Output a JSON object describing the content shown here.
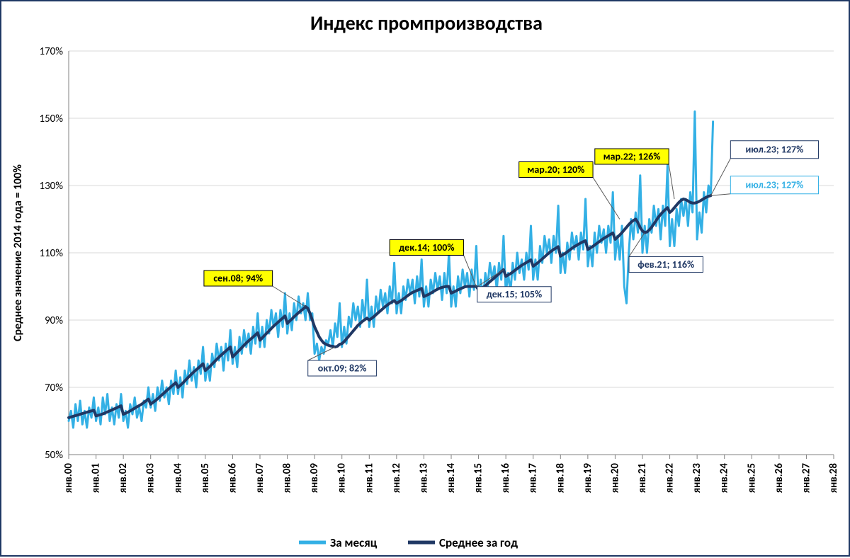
{
  "chart": {
    "type": "line",
    "title": "Индекс промпроизводства",
    "title_fontsize": 28,
    "y_axis_title": "Среднее значение 2014 года = 100%",
    "ylim": [
      50,
      170
    ],
    "ytick_step": 20,
    "y_tick_labels": [
      "50%",
      "70%",
      "90%",
      "110%",
      "130%",
      "150%",
      "170%"
    ],
    "x_categories": [
      "янв.00",
      "янв.01",
      "янв.02",
      "янв.03",
      "янв.04",
      "янв.05",
      "янв.06",
      "янв.07",
      "янв.08",
      "янв.09",
      "янв.10",
      "янв.11",
      "янв.12",
      "янв.13",
      "янв.14",
      "янв.15",
      "янв.16",
      "янв.17",
      "янв.18",
      "янв.19",
      "янв.20",
      "янв.21",
      "янв.22",
      "янв.23",
      "янв.24",
      "янв.25",
      "янв.26",
      "янв.27",
      "янв.28"
    ],
    "background_color": "#ffffff",
    "grid_color": "#d9d9d9",
    "border_color": "#1f3864",
    "series": [
      {
        "name": "За месяц",
        "color": "#33b0e5",
        "line_width": 3,
        "data": [
          60,
          63,
          58,
          65,
          60,
          66,
          59,
          63,
          58,
          64,
          61,
          67,
          60,
          64,
          59,
          67,
          62,
          68,
          60,
          64,
          59,
          65,
          61,
          68,
          60,
          63,
          58,
          65,
          62,
          67,
          61,
          64,
          60,
          66,
          64,
          70,
          64,
          68,
          63,
          70,
          66,
          72,
          67,
          70,
          65,
          72,
          68,
          75,
          68,
          73,
          67,
          75,
          71,
          78,
          72,
          76,
          70,
          78,
          74,
          82,
          72,
          77,
          72,
          80,
          76,
          83,
          78,
          82,
          75,
          83,
          78,
          87,
          77,
          82,
          76,
          85,
          80,
          87,
          82,
          86,
          80,
          88,
          83,
          92,
          82,
          88,
          82,
          90,
          86,
          93,
          88,
          92,
          85,
          93,
          88,
          98,
          86,
          92,
          87,
          95,
          90,
          97,
          92,
          95,
          90,
          98,
          90,
          92,
          80,
          83,
          78,
          82,
          80,
          84,
          83,
          87,
          82,
          89,
          85,
          95,
          82,
          88,
          83,
          91,
          88,
          95,
          90,
          94,
          88,
          96,
          90,
          102,
          88,
          94,
          88,
          97,
          92,
          99,
          94,
          98,
          92,
          100,
          95,
          107,
          92,
          98,
          92,
          100,
          96,
          102,
          98,
          102,
          95,
          103,
          97,
          108,
          94,
          100,
          94,
          102,
          98,
          104,
          99,
          103,
          96,
          104,
          98,
          110,
          94,
          100,
          94,
          103,
          98,
          105,
          100,
          104,
          97,
          105,
          99,
          112,
          96,
          102,
          96,
          104,
          100,
          107,
          102,
          106,
          99,
          107,
          102,
          115,
          98,
          104,
          98,
          107,
          102,
          110,
          104,
          108,
          102,
          110,
          105,
          118,
          102,
          108,
          102,
          112,
          107,
          115,
          110,
          114,
          107,
          115,
          110,
          124,
          104,
          110,
          104,
          113,
          108,
          116,
          111,
          115,
          108,
          116,
          111,
          126,
          106,
          112,
          106,
          116,
          110,
          118,
          113,
          117,
          110,
          118,
          113,
          128,
          108,
          115,
          108,
          118,
          100,
          95,
          110,
          120,
          114,
          122,
          116,
          133,
          110,
          118,
          110,
          120,
          116,
          124,
          118,
          123,
          114,
          124,
          118,
          136,
          112,
          120,
          112,
          123,
          118,
          126,
          121,
          126,
          118,
          128,
          122,
          152,
          114,
          122,
          116,
          128,
          122,
          130,
          127,
          149
        ]
      },
      {
        "name": "Среднее за год",
        "color": "#203864",
        "line_width": 4,
        "data": [
          61,
          61.2,
          61.4,
          61.6,
          61.8,
          62,
          62.2,
          62.4,
          62.6,
          62.8,
          63,
          63.2,
          61.5,
          61.7,
          61.9,
          62.1,
          62.4,
          62.7,
          63,
          63.3,
          63.6,
          63.9,
          64.2,
          64.5,
          62,
          62.3,
          62.6,
          63,
          63.4,
          63.8,
          64.2,
          64.6,
          65,
          65.5,
          66,
          66.5,
          65,
          65.5,
          66,
          66.6,
          67.2,
          67.8,
          68.4,
          69,
          69.6,
          70.2,
          70.8,
          71.4,
          70,
          70.6,
          71.2,
          71.9,
          72.6,
          73.3,
          74,
          74.6,
          75.2,
          75.8,
          76.4,
          77,
          75,
          75.6,
          76.2,
          76.9,
          77.6,
          78.3,
          79,
          79.6,
          80.2,
          80.8,
          81.4,
          82,
          79,
          79.7,
          80.4,
          81.1,
          81.8,
          82.5,
          83.2,
          83.8,
          84.4,
          85,
          85.6,
          86.2,
          84,
          84.7,
          85.4,
          86.1,
          86.8,
          87.5,
          88.2,
          88.8,
          89.4,
          90,
          90.6,
          91.2,
          89,
          89.7,
          90.3,
          91,
          91.6,
          92.2,
          92.8,
          93.3,
          94,
          93.5,
          92,
          90,
          88,
          86.5,
          85,
          84,
          83.2,
          82.8,
          82.5,
          82.3,
          82.2,
          82,
          82.2,
          82.8,
          83,
          83.6,
          84.4,
          85.2,
          86,
          86.8,
          87.6,
          88.4,
          89,
          89.6,
          90.1,
          90.6,
          90,
          90.5,
          91,
          91.6,
          92.2,
          92.8,
          93.4,
          94,
          94.5,
          95,
          95.4,
          95.8,
          95,
          95.4,
          95.8,
          96.3,
          96.8,
          97.3,
          97.8,
          98.2,
          98.5,
          98.8,
          99.1,
          99.4,
          97,
          97.3,
          97.6,
          98,
          98.4,
          98.8,
          99.2,
          99.5,
          99.7,
          99.9,
          100,
          100,
          98,
          98.3,
          98.6,
          99,
          99.3,
          99.6,
          99.9,
          100,
          100,
          100,
          100,
          100,
          99,
          99.3,
          99.7,
          100.2,
          100.8,
          101.4,
          102,
          102.6,
          103.2,
          103.8,
          104.4,
          105,
          103,
          103.4,
          103.8,
          104.3,
          104.8,
          105.3,
          105.8,
          106.3,
          106.7,
          107.1,
          107.5,
          107.9,
          106,
          106.5,
          107,
          107.6,
          108.2,
          108.8,
          109.4,
          110,
          110.5,
          111,
          111.4,
          111.8,
          109,
          109.4,
          109.8,
          110.3,
          110.8,
          111.3,
          111.8,
          112.2,
          112.6,
          113,
          113.3,
          113.6,
          111,
          111.4,
          111.8,
          112.3,
          112.8,
          113.3,
          113.8,
          114.3,
          114.7,
          115.1,
          115.5,
          115.9,
          114,
          114.6,
          115.3,
          116,
          116.8,
          117.6,
          118.4,
          119.1,
          119.6,
          120,
          119,
          117.5,
          116.5,
          116,
          116.2,
          116.8,
          117.6,
          118.6,
          119.6,
          120.6,
          121.4,
          122.2,
          122.8,
          123.4,
          122,
          122.6,
          123.4,
          124.2,
          125,
          125.6,
          126,
          125.8,
          125.4,
          125,
          124.8,
          124.8,
          125,
          125.3,
          125.7,
          126.1,
          126.5,
          126.8,
          127
        ]
      }
    ],
    "callouts": [
      {
        "text": "сен.08; 94%",
        "bg": "#ffff00",
        "border": "#000000",
        "text_color": "#000000",
        "data_month_index": 104,
        "data_val": 94,
        "box_dx": -95,
        "box_dy": -40
      },
      {
        "text": "окт.09; 82%",
        "bg": "#ffffff",
        "border": "#203864",
        "text_color": "#203864",
        "data_month_index": 117,
        "data_val": 82,
        "box_dx": 10,
        "box_dy": 30
      },
      {
        "text": "дек.14; 100%",
        "bg": "#ffff00",
        "border": "#000000",
        "text_color": "#000000",
        "data_month_index": 179,
        "data_val": 100,
        "box_dx": -70,
        "box_dy": -55
      },
      {
        "text": "дек.15; 105%",
        "bg": "#ffffff",
        "border": "#203864",
        "text_color": "#203864",
        "data_month_index": 191,
        "data_val": 105,
        "box_dx": 15,
        "box_dy": 35
      },
      {
        "text": "мар.20; 120%",
        "bg": "#ffff00",
        "border": "#000000",
        "text_color": "#000000",
        "data_month_index": 242,
        "data_val": 120,
        "box_dx": -90,
        "box_dy": -70
      },
      {
        "text": "фев.21; 116%",
        "bg": "#ffffff",
        "border": "#203864",
        "text_color": "#203864",
        "data_month_index": 253,
        "data_val": 116,
        "box_dx": 30,
        "box_dy": 45
      },
      {
        "text": "мар.22; 126%",
        "bg": "#ffff00",
        "border": "#000000",
        "text_color": "#000000",
        "data_month_index": 266,
        "data_val": 126,
        "box_dx": -60,
        "box_dy": -60
      },
      {
        "text": "июл.23; 127%",
        "bg": "#ffffff",
        "border": "#203864",
        "text_color": "#203864",
        "data_month_index": 282,
        "data_val": 127,
        "box_dx": 90,
        "box_dy": -65,
        "big": true
      },
      {
        "text": "июл.23; 127%",
        "bg": "#ffffff",
        "border": "#33b0e5",
        "text_color": "#33b0e5",
        "data_month_index": 282,
        "data_val": 127,
        "box_dx": 90,
        "box_dy": -15,
        "big": true
      }
    ],
    "legend": {
      "items": [
        {
          "label": "За месяц",
          "color": "#33b0e5",
          "line_width": 4
        },
        {
          "label": "Среднее за год",
          "color": "#203864",
          "line_width": 4
        }
      ]
    }
  }
}
